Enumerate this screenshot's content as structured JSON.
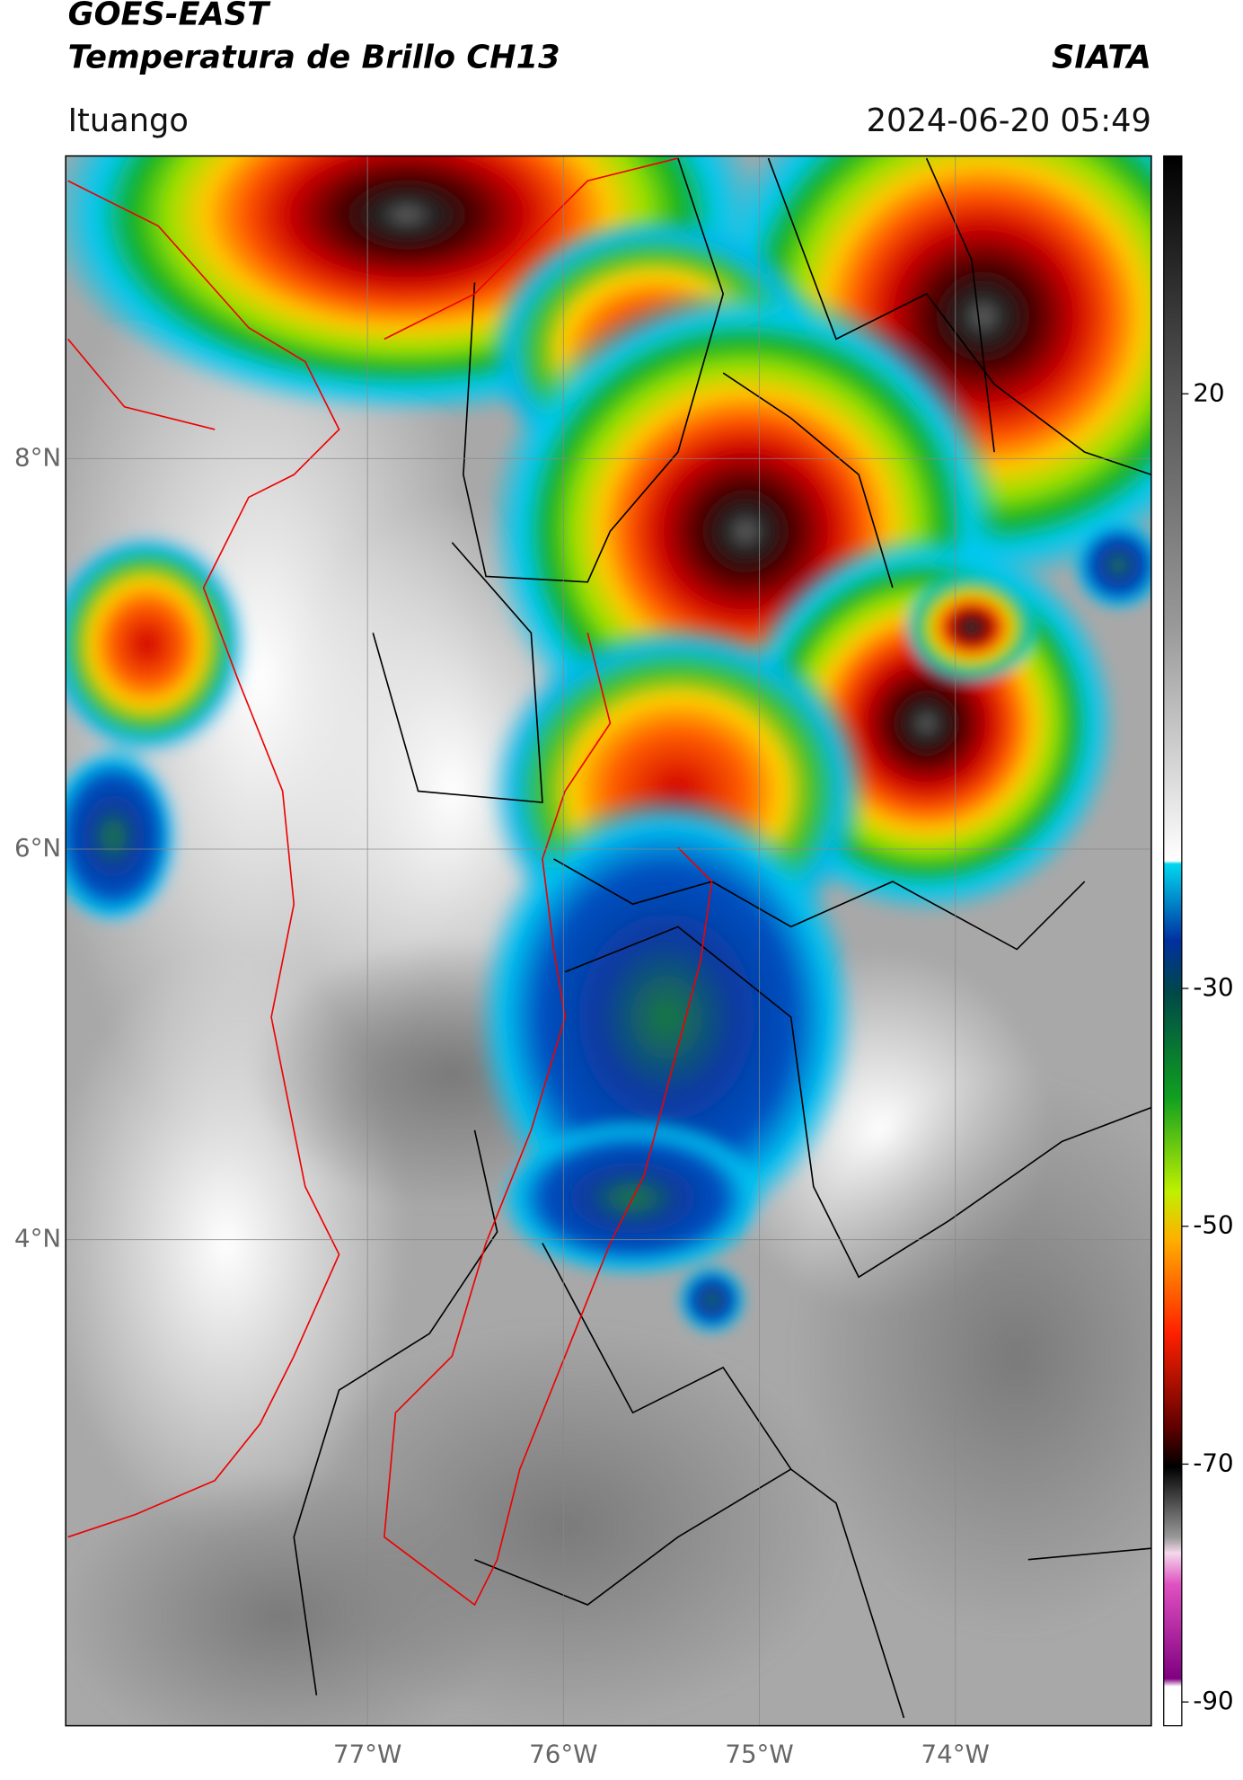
{
  "header": {
    "title_line1": "GOES-EAST",
    "title_line2": "Temperatura de Brillo CH13",
    "brand": "SIATA",
    "location": "Ituango",
    "timestamp": "2024-06-20 05:49"
  },
  "map": {
    "latlim": [
      9.55,
      1.51
    ],
    "lonlim": [
      -78.54,
      -73.0
    ],
    "lat_ticks": [
      {
        "value": 8,
        "label": "8°N"
      },
      {
        "value": 6,
        "label": "6°N"
      },
      {
        "value": 4,
        "label": "4°N"
      }
    ],
    "lon_ticks": [
      {
        "value": -77,
        "label": "77°W"
      },
      {
        "value": -76,
        "label": "76°W"
      },
      {
        "value": -75,
        "label": "75°W"
      },
      {
        "value": -74,
        "label": "74°W"
      }
    ]
  },
  "colorbar": {
    "lim": [
      40,
      -92
    ],
    "ticks": [
      20,
      -30,
      -50,
      -70,
      -90
    ]
  }
}
